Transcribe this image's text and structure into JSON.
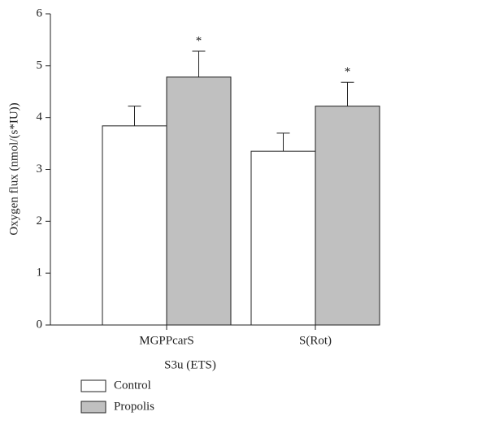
{
  "chart_data": {
    "type": "bar",
    "categories": [
      "MGPPcarS",
      "S(Rot)"
    ],
    "x_label": "S3u (ETS)",
    "y_label": "Oxygen flux (nmol/(s*IU))",
    "series": [
      {
        "name": "Control",
        "color": "#ffffff",
        "values": [
          3.84,
          3.35
        ],
        "errors": [
          0.38,
          0.35
        ]
      },
      {
        "name": "Propolis",
        "color": "#c0c0c0",
        "values": [
          4.78,
          4.22
        ],
        "errors": [
          0.5,
          0.46
        ]
      }
    ],
    "annotations": [
      "*",
      "*"
    ],
    "ylim": [
      0,
      6
    ],
    "yticks": [
      0,
      1,
      2,
      3,
      4,
      5,
      6
    ],
    "grid": false,
    "legend": "bottom-left"
  }
}
